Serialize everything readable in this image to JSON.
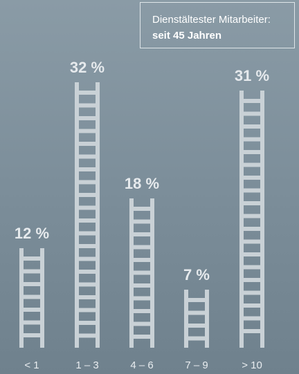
{
  "info": {
    "label": "Dienstältester Mitarbeiter:",
    "value": "seit 45 Jahren"
  },
  "colors": {
    "ladder": "#c9d1d6",
    "label": "#e6eaed"
  },
  "chart_data": {
    "type": "bar",
    "style": "ladder",
    "categories": [
      "< 1",
      "1 – 3",
      "4 – 6",
      "7 – 9",
      "> 10"
    ],
    "values": [
      12,
      32,
      18,
      7,
      31
    ],
    "value_labels": [
      "12 %",
      "32 %",
      "18 %",
      "7 %",
      "31 %"
    ],
    "title": "",
    "xlabel": "",
    "ylabel": "",
    "ylim": [
      0,
      32
    ],
    "grid": false,
    "legend": "none"
  }
}
